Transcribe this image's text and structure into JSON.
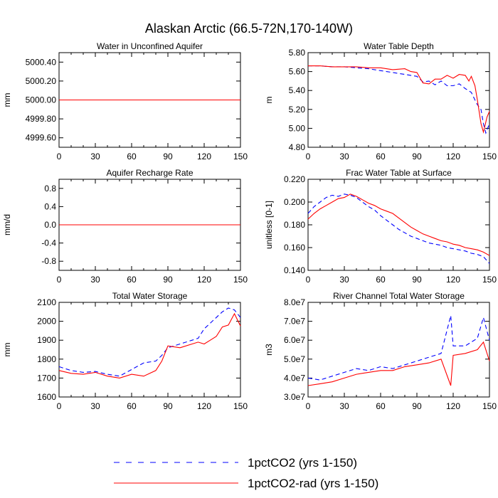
{
  "title": "Alaskan Arctic (66.5-72N,170-140W)",
  "colors": {
    "series_a": "#0000ff",
    "series_b": "#ff0000",
    "axis": "#000000"
  },
  "legend": {
    "items": [
      {
        "label": "1pctCO2 (yrs 1-150)",
        "style": "dashed",
        "color": "#0000ff"
      },
      {
        "label": "1pctCO2-rad (yrs 1-150)",
        "style": "solid",
        "color": "#ff0000"
      }
    ]
  },
  "chart_data": [
    {
      "type": "line",
      "title": "Water in Unconfined Aquifer",
      "ylabel": "mm",
      "xlim": [
        0,
        150
      ],
      "xticks": [
        "0",
        "30",
        "60",
        "90",
        "120",
        "150"
      ],
      "ylim": [
        4999.5,
        5000.5
      ],
      "yticks": [
        "4999.60",
        "4999.80",
        "5000.00",
        "5000.20",
        "5000.40"
      ],
      "grid": false,
      "series": [
        {
          "name": "1pctCO2 (yrs 1-150)",
          "x": [
            0,
            150
          ],
          "y": [
            5000.0,
            5000.0
          ]
        },
        {
          "name": "1pctCO2-rad (yrs 1-150)",
          "x": [
            0,
            150
          ],
          "y": [
            5000.0,
            5000.0
          ]
        }
      ]
    },
    {
      "type": "line",
      "title": "Water Table Depth",
      "ylabel": "m",
      "xlim": [
        0,
        150
      ],
      "xticks": [
        "0",
        "30",
        "60",
        "90",
        "120",
        "150"
      ],
      "ylim": [
        4.8,
        5.8
      ],
      "yticks": [
        "4.80",
        "5.00",
        "5.20",
        "5.40",
        "5.60",
        "5.80"
      ],
      "grid": false,
      "series": [
        {
          "name": "1pctCO2 (yrs 1-150)",
          "x": [
            0,
            10,
            20,
            30,
            40,
            50,
            60,
            70,
            80,
            90,
            95,
            100,
            105,
            110,
            115,
            120,
            125,
            130,
            135,
            138,
            140,
            143,
            145,
            147,
            150
          ],
          "y": [
            5.66,
            5.66,
            5.65,
            5.65,
            5.64,
            5.63,
            5.61,
            5.59,
            5.57,
            5.55,
            5.49,
            5.5,
            5.46,
            5.5,
            5.45,
            5.45,
            5.47,
            5.42,
            5.38,
            5.3,
            5.25,
            5.2,
            5.05,
            4.95,
            5.05
          ]
        },
        {
          "name": "1pctCO2-rad (yrs 1-150)",
          "x": [
            0,
            10,
            20,
            30,
            40,
            50,
            60,
            70,
            80,
            85,
            90,
            95,
            100,
            105,
            110,
            115,
            120,
            125,
            130,
            133,
            135,
            138,
            140,
            143,
            145,
            148,
            150
          ],
          "y": [
            5.66,
            5.66,
            5.65,
            5.65,
            5.65,
            5.64,
            5.64,
            5.62,
            5.63,
            5.6,
            5.59,
            5.48,
            5.47,
            5.52,
            5.52,
            5.56,
            5.53,
            5.57,
            5.56,
            5.5,
            5.55,
            5.45,
            5.3,
            5.05,
            4.96,
            5.12,
            5.18
          ]
        }
      ]
    },
    {
      "type": "line",
      "title": "Aquifer Recharge Rate",
      "ylabel": "mm/d",
      "xlim": [
        0,
        150
      ],
      "xticks": [
        "0",
        "30",
        "60",
        "90",
        "120",
        "150"
      ],
      "ylim": [
        -1.0,
        1.0
      ],
      "yticks": [
        "-0.8",
        "-0.4",
        "0.0",
        "0.4",
        "0.8"
      ],
      "grid": false,
      "series": [
        {
          "name": "1pctCO2 (yrs 1-150)",
          "x": [
            0,
            150
          ],
          "y": [
            0.0,
            0.0
          ]
        },
        {
          "name": "1pctCO2-rad (yrs 1-150)",
          "x": [
            0,
            150
          ],
          "y": [
            0.0,
            0.0
          ]
        }
      ]
    },
    {
      "type": "line",
      "title": "Frac Water Table at Surface",
      "ylabel": "unitless [0-1]",
      "xlim": [
        0,
        150
      ],
      "xticks": [
        "0",
        "30",
        "60",
        "90",
        "120",
        "150"
      ],
      "ylim": [
        0.14,
        0.22
      ],
      "yticks": [
        "0.140",
        "0.160",
        "0.180",
        "0.200",
        "0.220"
      ],
      "grid": false,
      "series": [
        {
          "name": "1pctCO2 (yrs 1-150)",
          "x": [
            0,
            5,
            10,
            15,
            20,
            25,
            30,
            35,
            40,
            45,
            50,
            55,
            60,
            65,
            70,
            75,
            80,
            85,
            90,
            95,
            100,
            105,
            110,
            115,
            120,
            125,
            130,
            135,
            140,
            145,
            150
          ],
          "y": [
            0.19,
            0.196,
            0.2,
            0.204,
            0.206,
            0.205,
            0.207,
            0.206,
            0.204,
            0.2,
            0.196,
            0.193,
            0.188,
            0.184,
            0.18,
            0.176,
            0.173,
            0.17,
            0.168,
            0.166,
            0.164,
            0.163,
            0.162,
            0.16,
            0.159,
            0.158,
            0.157,
            0.155,
            0.154,
            0.152,
            0.146
          ]
        },
        {
          "name": "1pctCO2-rad (yrs 1-150)",
          "x": [
            0,
            5,
            10,
            15,
            20,
            25,
            30,
            35,
            40,
            45,
            50,
            55,
            60,
            65,
            70,
            75,
            80,
            85,
            90,
            95,
            100,
            105,
            110,
            115,
            120,
            125,
            130,
            135,
            140,
            145,
            150
          ],
          "y": [
            0.185,
            0.19,
            0.194,
            0.197,
            0.2,
            0.203,
            0.204,
            0.207,
            0.205,
            0.202,
            0.199,
            0.197,
            0.194,
            0.192,
            0.19,
            0.186,
            0.182,
            0.178,
            0.175,
            0.172,
            0.17,
            0.168,
            0.166,
            0.165,
            0.163,
            0.162,
            0.16,
            0.159,
            0.158,
            0.156,
            0.153
          ]
        }
      ]
    },
    {
      "type": "line",
      "title": "Total Water Storage",
      "ylabel": "mm",
      "xlim": [
        0,
        150
      ],
      "xticks": [
        "0",
        "30",
        "60",
        "90",
        "120",
        "150"
      ],
      "ylim": [
        1600,
        2100
      ],
      "yticks": [
        "1600",
        "1700",
        "1800",
        "1900",
        "2000",
        "2100"
      ],
      "grid": false,
      "series": [
        {
          "name": "1pctCO2 (yrs 1-150)",
          "x": [
            0,
            10,
            20,
            30,
            40,
            50,
            60,
            70,
            80,
            85,
            90,
            100,
            110,
            115,
            120,
            125,
            130,
            135,
            140,
            145,
            150
          ],
          "y": [
            1760,
            1740,
            1730,
            1735,
            1720,
            1710,
            1745,
            1780,
            1790,
            1820,
            1860,
            1880,
            1900,
            1910,
            1960,
            1990,
            2020,
            2050,
            2070,
            2060,
            2020
          ]
        },
        {
          "name": "1pctCO2-rad (yrs 1-150)",
          "x": [
            0,
            10,
            20,
            30,
            40,
            50,
            60,
            70,
            80,
            85,
            90,
            100,
            110,
            115,
            120,
            125,
            130,
            135,
            140,
            145,
            150
          ],
          "y": [
            1740,
            1725,
            1720,
            1730,
            1710,
            1700,
            1720,
            1710,
            1740,
            1790,
            1870,
            1860,
            1880,
            1890,
            1880,
            1900,
            1920,
            1970,
            1980,
            2040,
            1975
          ]
        }
      ]
    },
    {
      "type": "line",
      "title": "River Channel Total Water Storage",
      "ylabel": "m3",
      "xlim": [
        0,
        150
      ],
      "xticks": [
        "0",
        "30",
        "60",
        "90",
        "120",
        "150"
      ],
      "ylim": [
        30000000,
        80000000
      ],
      "yticks": [
        "3.0e7",
        "4.0e7",
        "5.0e7",
        "6.0e7",
        "7.0e7",
        "8.0e7"
      ],
      "grid": false,
      "series": [
        {
          "name": "1pctCO2 (yrs 1-150)",
          "x": [
            0,
            10,
            20,
            30,
            40,
            50,
            60,
            70,
            80,
            90,
            100,
            110,
            118,
            120,
            130,
            140,
            145,
            150
          ],
          "y": [
            40000000,
            39000000,
            41000000,
            43000000,
            45000000,
            44000000,
            46000000,
            45000000,
            47000000,
            49000000,
            51000000,
            53000000,
            73000000,
            57000000,
            57000000,
            61000000,
            72000000,
            60000000
          ]
        },
        {
          "name": "1pctCO2-rad (yrs 1-150)",
          "x": [
            0,
            10,
            20,
            30,
            40,
            50,
            60,
            70,
            80,
            90,
            100,
            110,
            118,
            120,
            130,
            140,
            145,
            150
          ],
          "y": [
            36000000,
            37000000,
            38000000,
            40000000,
            42000000,
            43000000,
            44000000,
            44000000,
            46000000,
            47000000,
            48000000,
            50000000,
            36000000,
            52000000,
            53000000,
            55000000,
            59000000,
            49000000
          ]
        }
      ]
    }
  ]
}
